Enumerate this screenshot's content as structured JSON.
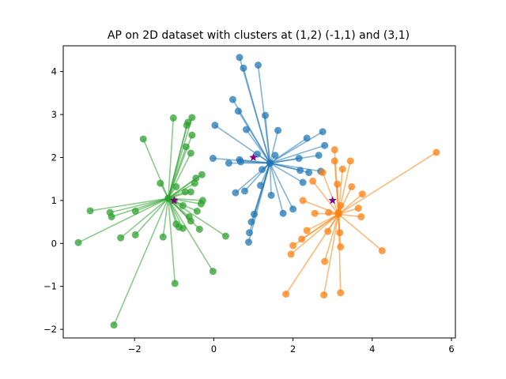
{
  "chart_data": {
    "type": "scatter",
    "title": "AP on 2D dataset with clusters at (1,2) (-1,1) and (3,1)",
    "xlim": [
      -3.8,
      6.1
    ],
    "ylim": [
      -2.2,
      4.6
    ],
    "x_ticks": [
      -2,
      0,
      2,
      4,
      6
    ],
    "y_ticks": [
      -2,
      -1,
      0,
      1,
      2,
      3,
      4
    ],
    "x_tick_labels": [
      "−2",
      "0",
      "2",
      "4",
      "6"
    ],
    "y_tick_labels": [
      "−2",
      "−1",
      "0",
      "1",
      "2",
      "3",
      "4"
    ],
    "grid": false,
    "legend": "none",
    "true_centers": {
      "marker": "star",
      "color": "#800080",
      "points": [
        [
          1,
          2
        ],
        [
          -1,
          1
        ],
        [
          3,
          1
        ]
      ]
    },
    "series": [
      {
        "color": "#1f77b4",
        "exemplar": [
          1.42,
          1.87
        ],
        "points": [
          [
            0.65,
            4.33
          ],
          [
            0.75,
            4.08
          ],
          [
            1.12,
            4.15
          ],
          [
            0.48,
            3.35
          ],
          [
            0.62,
            3.08
          ],
          [
            0.82,
            2.65
          ],
          [
            1.3,
            2.98
          ],
          [
            1.62,
            2.63
          ],
          [
            2.35,
            2.45
          ],
          [
            2.75,
            2.6
          ],
          [
            2.8,
            2.28
          ],
          [
            0.03,
            2.75
          ],
          [
            -0.02,
            1.98
          ],
          [
            0.38,
            1.87
          ],
          [
            0.65,
            1.95
          ],
          [
            0.68,
            1.9
          ],
          [
            1.1,
            2.08
          ],
          [
            1.55,
            2.05
          ],
          [
            2.15,
            1.98
          ],
          [
            2.65,
            2.05
          ],
          [
            2.18,
            1.7
          ],
          [
            2.4,
            1.65
          ],
          [
            2.7,
            1.68
          ],
          [
            1.22,
            1.72
          ],
          [
            1.18,
            1.35
          ],
          [
            2.25,
            1.42
          ],
          [
            0.55,
            1.18
          ],
          [
            0.78,
            1.22
          ],
          [
            1.45,
            1.12
          ],
          [
            1.75,
            0.7
          ],
          [
            2.0,
            0.8
          ],
          [
            1.02,
            0.68
          ],
          [
            0.95,
            0.5
          ],
          [
            0.9,
            0.25
          ],
          [
            0.88,
            0.03
          ]
        ]
      },
      {
        "color": "#ff7f0e",
        "exemplar": [
          3.15,
          0.68
        ],
        "points": [
          [
            5.62,
            2.12
          ],
          [
            3.05,
            2.18
          ],
          [
            3.05,
            1.92
          ],
          [
            3.25,
            1.73
          ],
          [
            3.45,
            1.92
          ],
          [
            2.75,
            1.65
          ],
          [
            2.5,
            1.45
          ],
          [
            3.12,
            1.38
          ],
          [
            3.48,
            1.32
          ],
          [
            2.25,
            1.0
          ],
          [
            3.75,
            1.15
          ],
          [
            3.2,
            0.88
          ],
          [
            3.15,
            0.72
          ],
          [
            3.65,
            0.82
          ],
          [
            2.55,
            0.7
          ],
          [
            2.9,
            0.72
          ],
          [
            3.72,
            0.62
          ],
          [
            2.35,
            0.3
          ],
          [
            2.22,
            0.1
          ],
          [
            2.88,
            0.28
          ],
          [
            3.18,
            0.25
          ],
          [
            2.0,
            -0.05
          ],
          [
            1.95,
            -0.25
          ],
          [
            3.2,
            -0.08
          ],
          [
            4.25,
            -0.17
          ],
          [
            2.8,
            -0.42
          ],
          [
            1.82,
            -1.18
          ],
          [
            2.78,
            -1.2
          ],
          [
            3.2,
            -1.15
          ]
        ]
      },
      {
        "color": "#2ca02c",
        "exemplar": [
          -1.15,
          1.05
        ],
        "points": [
          [
            -1.78,
            2.43
          ],
          [
            -1.02,
            2.92
          ],
          [
            -0.55,
            2.93
          ],
          [
            -0.65,
            2.82
          ],
          [
            -0.68,
            2.75
          ],
          [
            -0.55,
            2.52
          ],
          [
            -0.7,
            2.25
          ],
          [
            -0.58,
            2.1
          ],
          [
            -0.3,
            1.6
          ],
          [
            -0.45,
            1.52
          ],
          [
            -0.48,
            1.4
          ],
          [
            -1.35,
            1.4
          ],
          [
            -0.95,
            1.32
          ],
          [
            -0.72,
            1.2
          ],
          [
            -0.58,
            1.2
          ],
          [
            -0.28,
            1.0
          ],
          [
            -0.32,
            0.92
          ],
          [
            -1.0,
            1.0
          ],
          [
            -0.78,
            0.88
          ],
          [
            -0.42,
            0.75
          ],
          [
            -3.12,
            0.76
          ],
          [
            -2.62,
            0.72
          ],
          [
            -2.58,
            0.62
          ],
          [
            -1.98,
            0.75
          ],
          [
            -0.62,
            0.62
          ],
          [
            -0.58,
            0.52
          ],
          [
            -0.95,
            0.45
          ],
          [
            -0.88,
            0.38
          ],
          [
            -0.78,
            0.35
          ],
          [
            -0.36,
            0.33
          ],
          [
            -2.35,
            0.13
          ],
          [
            -1.98,
            0.2
          ],
          [
            -1.28,
            0.15
          ],
          [
            0.3,
            0.17
          ],
          [
            -3.42,
            0.02
          ],
          [
            -0.02,
            -0.65
          ],
          [
            -0.98,
            -0.93
          ],
          [
            -2.52,
            -1.9
          ]
        ]
      }
    ]
  }
}
